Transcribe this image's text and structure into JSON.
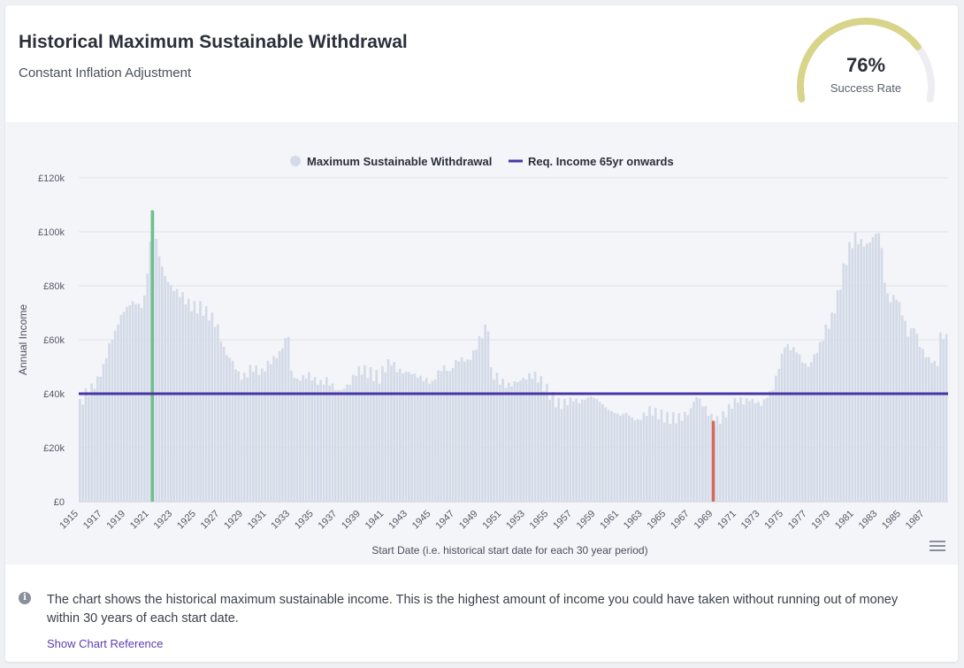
{
  "header": {
    "title": "Historical Maximum Sustainable Withdrawal",
    "subtitle": "Constant Inflation Adjustment"
  },
  "gauge": {
    "value_text": "76%",
    "label": "Success Rate",
    "fraction": 0.76,
    "fill_color": "#d8d48a",
    "track_color": "#eeeef2"
  },
  "legend": {
    "items": [
      {
        "label": "Maximum Sustainable Withdrawal",
        "color": "#d4dbe8",
        "marker": "circle"
      },
      {
        "label": "Req. Income 65yr onwards",
        "color": "#4a35a8",
        "marker": "line"
      }
    ]
  },
  "footer": {
    "info_icon": "info-icon",
    "text": "The chart shows the historical maximum sustainable income. This is the highest amount of income you could have taken without running out of money within 30 years of each start date.",
    "link": "Show Chart Reference"
  },
  "chart_data": {
    "type": "bar",
    "ylabel": "Annual Income",
    "xlabel": "Start Date (i.e. historical start date for each 30 year period)",
    "ylim": [
      0,
      120000
    ],
    "yticks": [
      "£0",
      "£20k",
      "£40k",
      "£60k",
      "£80k",
      "£100k",
      "£120k"
    ],
    "xticks": [
      "1915",
      "1917",
      "1919",
      "1921",
      "1923",
      "1925",
      "1927",
      "1929",
      "1931",
      "1933",
      "1935",
      "1937",
      "1939",
      "1941",
      "1943",
      "1945",
      "1947",
      "1949",
      "1951",
      "1953",
      "1955",
      "1957",
      "1959",
      "1961",
      "1963",
      "1965",
      "1967",
      "1969",
      "1971",
      "1973",
      "1975",
      "1977",
      "1979",
      "1981",
      "1983",
      "1985",
      "1987"
    ],
    "x_start": 1915,
    "x_end": 1988.9,
    "points_per_year": 4,
    "series": [
      {
        "name": "Maximum Sustainable Withdrawal",
        "color": "#d4dbe8",
        "keyframes": [
          [
            1915.0,
            36000
          ],
          [
            1915.5,
            40000
          ],
          [
            1916.0,
            42000
          ],
          [
            1916.5,
            45000
          ],
          [
            1917.0,
            50000
          ],
          [
            1917.5,
            58000
          ],
          [
            1918.0,
            63000
          ],
          [
            1918.5,
            69000
          ],
          [
            1919.0,
            72000
          ],
          [
            1919.5,
            74000
          ],
          [
            1920.0,
            73000
          ],
          [
            1920.3,
            72000
          ],
          [
            1920.6,
            78000
          ],
          [
            1920.9,
            92000
          ],
          [
            1921.1,
            100000
          ],
          [
            1921.25,
            108000
          ],
          [
            1921.5,
            97000
          ],
          [
            1921.8,
            90000
          ],
          [
            1922.2,
            84000
          ],
          [
            1922.7,
            80000
          ],
          [
            1923.2,
            78000
          ],
          [
            1923.8,
            76000
          ],
          [
            1924.3,
            73000
          ],
          [
            1924.8,
            72000
          ],
          [
            1925.3,
            72000
          ],
          [
            1925.8,
            70000
          ],
          [
            1926.3,
            68000
          ],
          [
            1926.8,
            64000
          ],
          [
            1927.2,
            57000
          ],
          [
            1927.6,
            54000
          ],
          [
            1928.0,
            52000
          ],
          [
            1928.4,
            48000
          ],
          [
            1928.8,
            46000
          ],
          [
            1929.2,
            47000
          ],
          [
            1929.6,
            50000
          ],
          [
            1930.0,
            49000
          ],
          [
            1930.5,
            48000
          ],
          [
            1931.0,
            51000
          ],
          [
            1931.5,
            53000
          ],
          [
            1932.0,
            55000
          ],
          [
            1932.5,
            60000
          ],
          [
            1932.8,
            62000
          ],
          [
            1933.0,
            48000
          ],
          [
            1933.5,
            45000
          ],
          [
            1934.0,
            46000
          ],
          [
            1934.5,
            47000
          ],
          [
            1935.0,
            45000
          ],
          [
            1935.5,
            44000
          ],
          [
            1936.0,
            45000
          ],
          [
            1936.5,
            43000
          ],
          [
            1937.0,
            41000
          ],
          [
            1937.5,
            42000
          ],
          [
            1938.0,
            44000
          ],
          [
            1938.5,
            48000
          ],
          [
            1939.0,
            49000
          ],
          [
            1939.5,
            48000
          ],
          [
            1940.0,
            47000
          ],
          [
            1940.5,
            46000
          ],
          [
            1941.0,
            50000
          ],
          [
            1941.5,
            52000
          ],
          [
            1942.0,
            49000
          ],
          [
            1942.5,
            48000
          ],
          [
            1943.0,
            48000
          ],
          [
            1943.5,
            47000
          ],
          [
            1944.0,
            46000
          ],
          [
            1944.5,
            45000
          ],
          [
            1945.0,
            44000
          ],
          [
            1945.5,
            48000
          ],
          [
            1946.0,
            50000
          ],
          [
            1946.5,
            48000
          ],
          [
            1947.0,
            52000
          ],
          [
            1947.5,
            53000
          ],
          [
            1948.0,
            52000
          ],
          [
            1948.5,
            55000
          ],
          [
            1949.0,
            60000
          ],
          [
            1949.5,
            64000
          ],
          [
            1949.8,
            65000
          ],
          [
            1950.0,
            48000
          ],
          [
            1950.5,
            46000
          ],
          [
            1951.0,
            44000
          ],
          [
            1951.5,
            43000
          ],
          [
            1952.0,
            44000
          ],
          [
            1952.5,
            45000
          ],
          [
            1953.0,
            46000
          ],
          [
            1953.5,
            47000
          ],
          [
            1954.0,
            46000
          ],
          [
            1954.5,
            43000
          ],
          [
            1955.0,
            40000
          ],
          [
            1955.5,
            37000
          ],
          [
            1956.0,
            36000
          ],
          [
            1956.5,
            37000
          ],
          [
            1957.0,
            38000
          ],
          [
            1957.5,
            37000
          ],
          [
            1958.0,
            38000
          ],
          [
            1958.5,
            39000
          ],
          [
            1959.0,
            38000
          ],
          [
            1959.5,
            36000
          ],
          [
            1960.0,
            34000
          ],
          [
            1960.5,
            33000
          ],
          [
            1961.0,
            32000
          ],
          [
            1961.5,
            33000
          ],
          [
            1962.0,
            31000
          ],
          [
            1962.5,
            30000
          ],
          [
            1963.0,
            32000
          ],
          [
            1963.5,
            34000
          ],
          [
            1964.0,
            33000
          ],
          [
            1964.5,
            32000
          ],
          [
            1965.0,
            31000
          ],
          [
            1965.5,
            31000
          ],
          [
            1966.0,
            31000
          ],
          [
            1966.5,
            32000
          ],
          [
            1967.0,
            34000
          ],
          [
            1967.3,
            38000
          ],
          [
            1967.6,
            39000
          ],
          [
            1968.0,
            36000
          ],
          [
            1968.5,
            33000
          ],
          [
            1968.9,
            30000
          ],
          [
            1969.3,
            30000
          ],
          [
            1969.6,
            31000
          ],
          [
            1970.0,
            33000
          ],
          [
            1970.5,
            36000
          ],
          [
            1971.0,
            38000
          ],
          [
            1971.5,
            37000
          ],
          [
            1972.0,
            38000
          ],
          [
            1972.5,
            37000
          ],
          [
            1973.0,
            36000
          ],
          [
            1973.5,
            39000
          ],
          [
            1974.0,
            42000
          ],
          [
            1974.5,
            50000
          ],
          [
            1975.0,
            58000
          ],
          [
            1975.5,
            57000
          ],
          [
            1976.0,
            56000
          ],
          [
            1976.5,
            52000
          ],
          [
            1977.0,
            50000
          ],
          [
            1977.5,
            54000
          ],
          [
            1978.0,
            58000
          ],
          [
            1978.5,
            64000
          ],
          [
            1979.0,
            68000
          ],
          [
            1979.5,
            76000
          ],
          [
            1980.0,
            86000
          ],
          [
            1980.5,
            94000
          ],
          [
            1981.0,
            98000
          ],
          [
            1981.5,
            96000
          ],
          [
            1982.0,
            95000
          ],
          [
            1982.5,
            98000
          ],
          [
            1983.0,
            100000
          ],
          [
            1983.3,
            92000
          ],
          [
            1983.6,
            77000
          ],
          [
            1984.0,
            75000
          ],
          [
            1984.5,
            76000
          ],
          [
            1985.0,
            70000
          ],
          [
            1985.5,
            62000
          ],
          [
            1986.0,
            65000
          ],
          [
            1986.5,
            58000
          ],
          [
            1987.0,
            54000
          ],
          [
            1987.5,
            52000
          ],
          [
            1988.0,
            51000
          ],
          [
            1988.3,
            64000
          ],
          [
            1988.6,
            60000
          ],
          [
            1988.9,
            62000
          ]
        ]
      },
      {
        "name": "Req. Income 65yr onwards",
        "color": "#4a35a8",
        "value": 40000
      }
    ],
    "highlights": [
      {
        "x": 1921.25,
        "value": 108000,
        "color": "#6fbf8f"
      },
      {
        "x": 1969.0,
        "value": 30000,
        "color": "#d86a5a"
      }
    ],
    "grid": true,
    "legend_position": "top-center"
  }
}
